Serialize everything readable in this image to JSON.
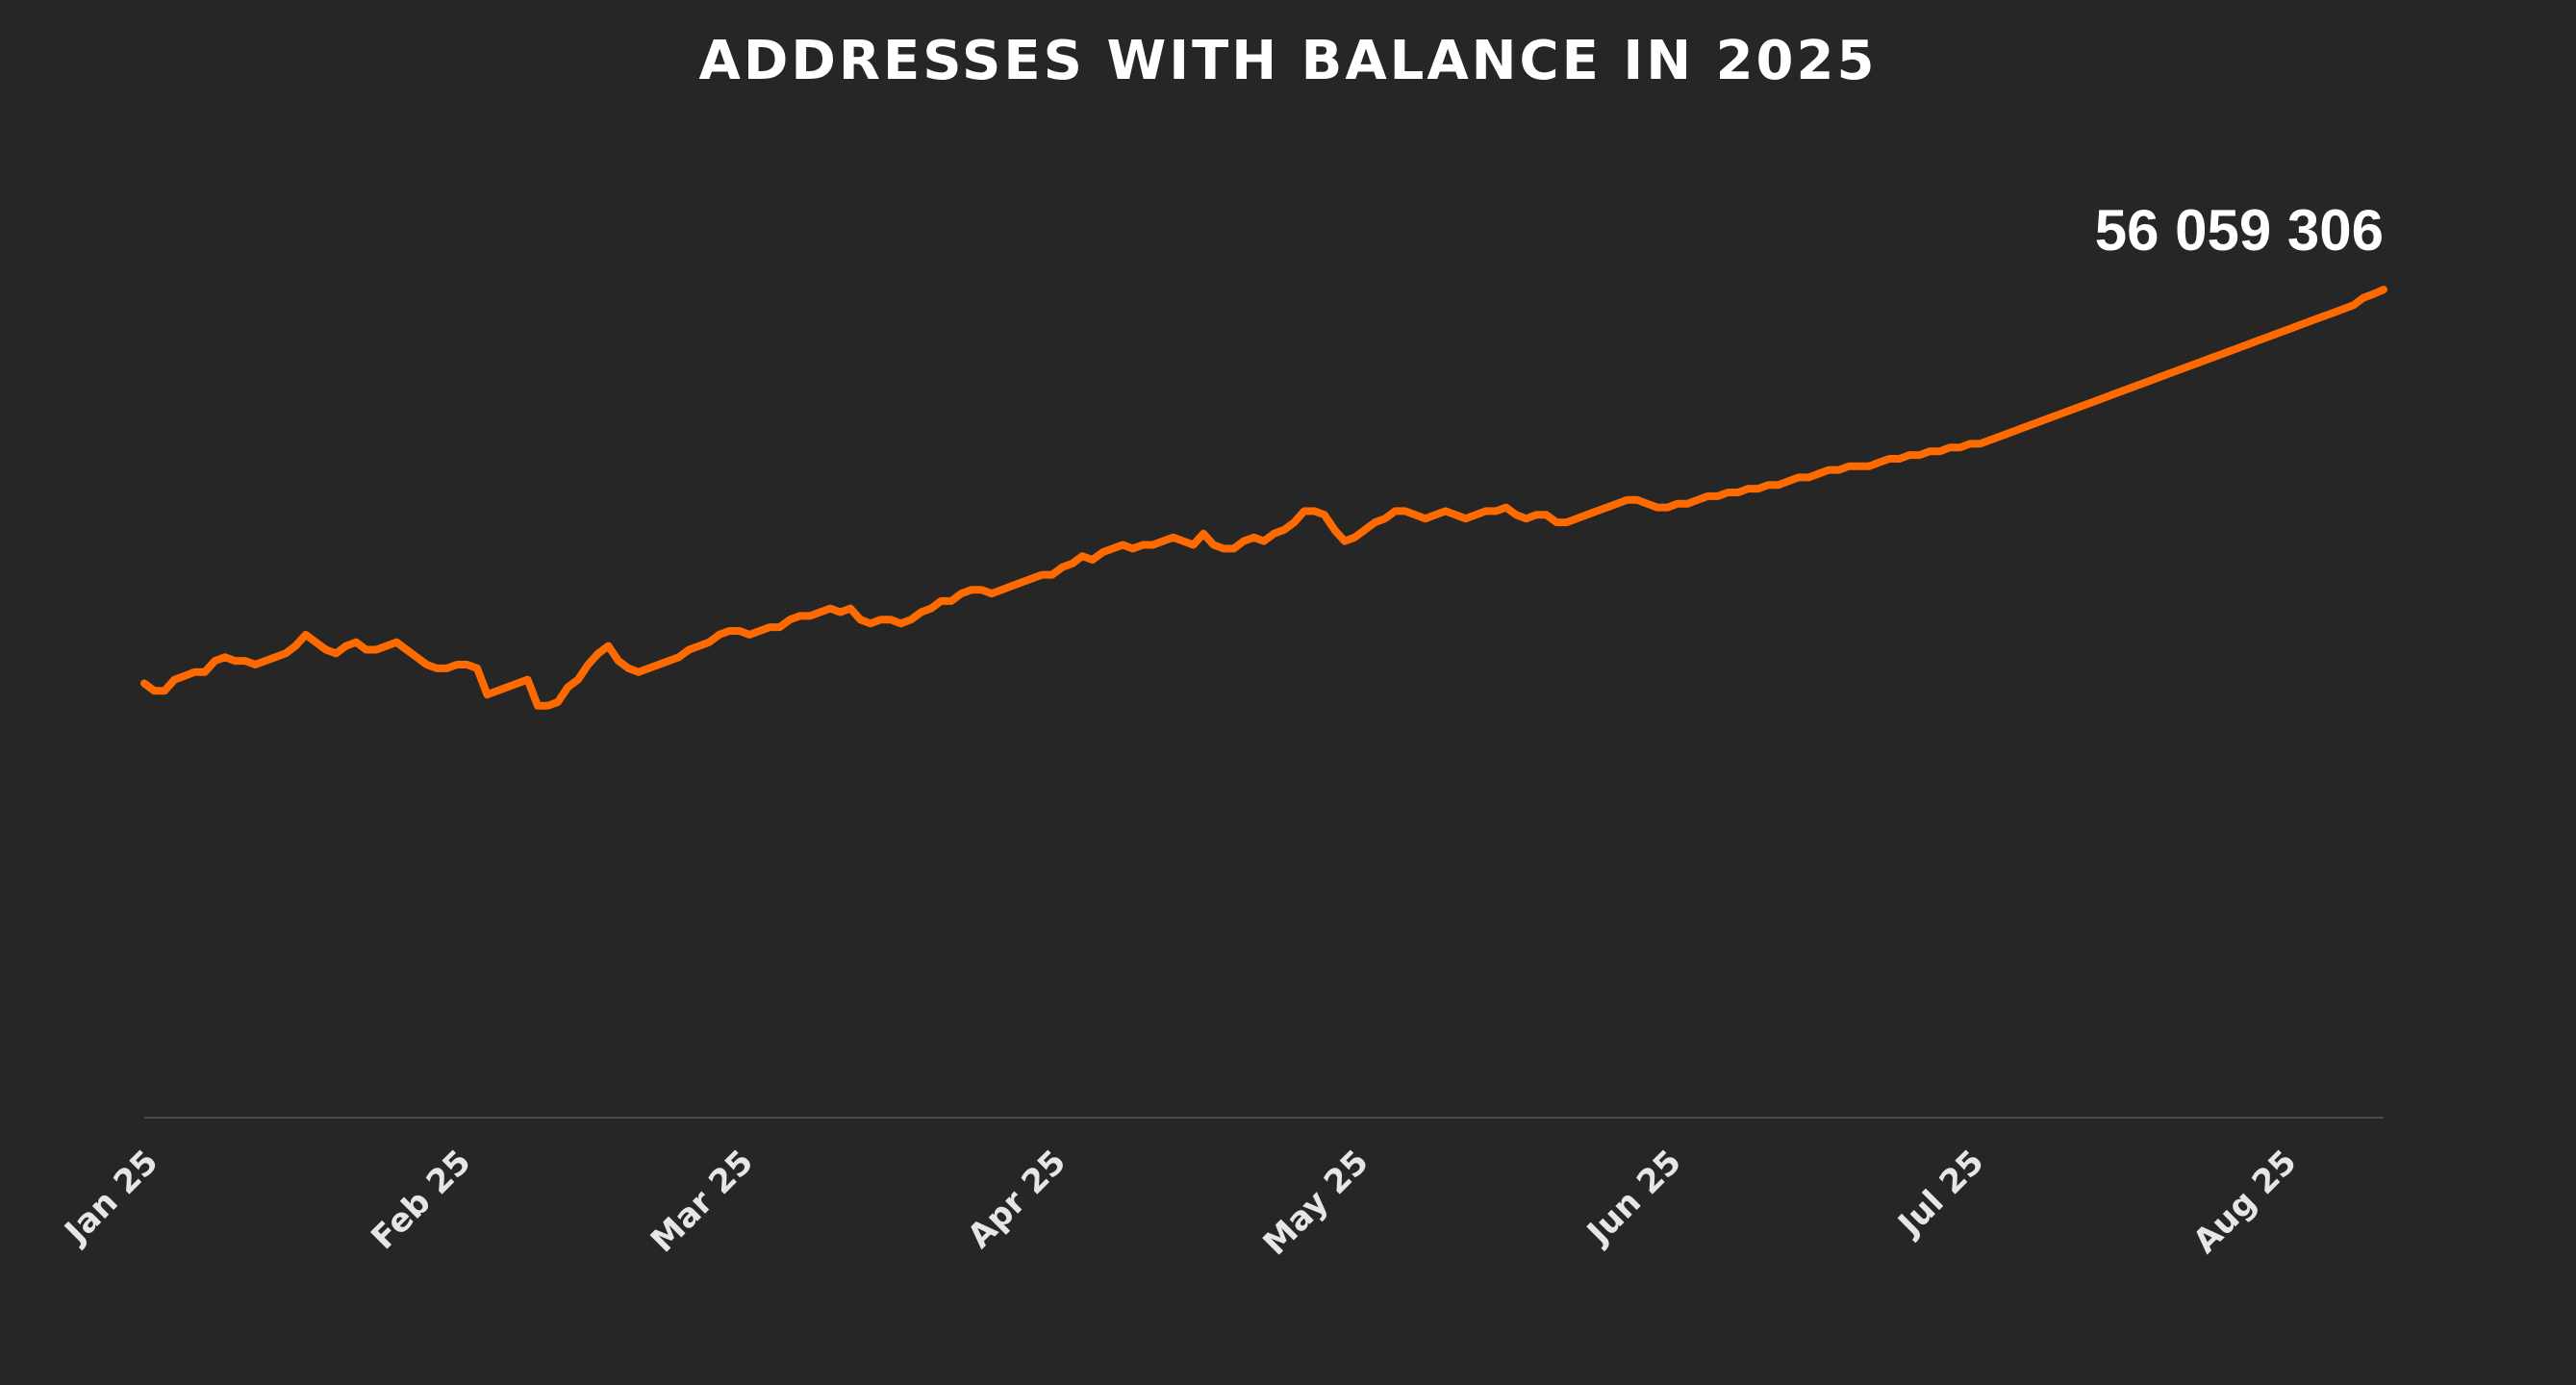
{
  "chart_data": {
    "type": "line",
    "title": "ADDRESSES WITH BALANCE IN 2025",
    "xlabel": "",
    "ylabel": "",
    "grid": false,
    "x_tick_labels": [
      "Jan 25",
      "Feb 25",
      "Mar 25",
      "Apr 25",
      "May 25",
      "Jun 25",
      "Jul 25",
      "Aug 25"
    ],
    "x_tick_days": [
      0,
      31,
      59,
      90,
      120,
      151,
      181,
      212
    ],
    "x_range_days": [
      0,
      222
    ],
    "ylim": [
      45000000,
      58000000
    ],
    "last_value_label": "56 059 306",
    "series": [
      {
        "name": "Addresses with balance",
        "color": "#ff6a00",
        "points": [
          [
            0,
            50800000
          ],
          [
            1,
            50700000
          ],
          [
            2,
            50700000
          ],
          [
            3,
            50850000
          ],
          [
            4,
            50900000
          ],
          [
            5,
            50950000
          ],
          [
            6,
            50950000
          ],
          [
            7,
            51100000
          ],
          [
            8,
            51150000
          ],
          [
            9,
            51100000
          ],
          [
            10,
            51100000
          ],
          [
            11,
            51050000
          ],
          [
            12,
            51100000
          ],
          [
            13,
            51150000
          ],
          [
            14,
            51200000
          ],
          [
            15,
            51300000
          ],
          [
            16,
            51450000
          ],
          [
            17,
            51350000
          ],
          [
            18,
            51250000
          ],
          [
            19,
            51200000
          ],
          [
            20,
            51300000
          ],
          [
            21,
            51350000
          ],
          [
            22,
            51250000
          ],
          [
            23,
            51250000
          ],
          [
            24,
            51300000
          ],
          [
            25,
            51350000
          ],
          [
            26,
            51250000
          ],
          [
            27,
            51150000
          ],
          [
            28,
            51050000
          ],
          [
            29,
            51000000
          ],
          [
            30,
            51000000
          ],
          [
            31,
            51050000
          ],
          [
            32,
            51050000
          ],
          [
            33,
            51000000
          ],
          [
            34,
            50650000
          ],
          [
            35,
            50700000
          ],
          [
            36,
            50750000
          ],
          [
            37,
            50800000
          ],
          [
            38,
            50850000
          ],
          [
            39,
            50500000
          ],
          [
            40,
            50500000
          ],
          [
            41,
            50550000
          ],
          [
            42,
            50750000
          ],
          [
            43,
            50850000
          ],
          [
            44,
            51050000
          ],
          [
            45,
            51200000
          ],
          [
            46,
            51300000
          ],
          [
            47,
            51100000
          ],
          [
            48,
            51000000
          ],
          [
            49,
            50950000
          ],
          [
            50,
            51000000
          ],
          [
            51,
            51050000
          ],
          [
            52,
            51100000
          ],
          [
            53,
            51150000
          ],
          [
            54,
            51250000
          ],
          [
            55,
            51300000
          ],
          [
            56,
            51350000
          ],
          [
            57,
            51450000
          ],
          [
            58,
            51500000
          ],
          [
            59,
            51500000
          ],
          [
            60,
            51450000
          ],
          [
            61,
            51500000
          ],
          [
            62,
            51550000
          ],
          [
            63,
            51550000
          ],
          [
            64,
            51650000
          ],
          [
            65,
            51700000
          ],
          [
            66,
            51700000
          ],
          [
            67,
            51750000
          ],
          [
            68,
            51800000
          ],
          [
            69,
            51750000
          ],
          [
            70,
            51800000
          ],
          [
            71,
            51650000
          ],
          [
            72,
            51600000
          ],
          [
            73,
            51650000
          ],
          [
            74,
            51650000
          ],
          [
            75,
            51600000
          ],
          [
            76,
            51650000
          ],
          [
            77,
            51750000
          ],
          [
            78,
            51800000
          ],
          [
            79,
            51900000
          ],
          [
            80,
            51900000
          ],
          [
            81,
            52000000
          ],
          [
            82,
            52050000
          ],
          [
            83,
            52050000
          ],
          [
            84,
            52000000
          ],
          [
            85,
            52050000
          ],
          [
            86,
            52100000
          ],
          [
            87,
            52150000
          ],
          [
            88,
            52200000
          ],
          [
            89,
            52250000
          ],
          [
            90,
            52250000
          ],
          [
            91,
            52350000
          ],
          [
            92,
            52400000
          ],
          [
            93,
            52500000
          ],
          [
            94,
            52450000
          ],
          [
            95,
            52550000
          ],
          [
            96,
            52600000
          ],
          [
            97,
            52650000
          ],
          [
            98,
            52600000
          ],
          [
            99,
            52650000
          ],
          [
            100,
            52650000
          ],
          [
            101,
            52700000
          ],
          [
            102,
            52750000
          ],
          [
            103,
            52700000
          ],
          [
            104,
            52650000
          ],
          [
            105,
            52800000
          ],
          [
            106,
            52650000
          ],
          [
            107,
            52600000
          ],
          [
            108,
            52600000
          ],
          [
            109,
            52700000
          ],
          [
            110,
            52750000
          ],
          [
            111,
            52700000
          ],
          [
            112,
            52800000
          ],
          [
            113,
            52850000
          ],
          [
            114,
            52950000
          ],
          [
            115,
            53100000
          ],
          [
            116,
            53100000
          ],
          [
            117,
            53050000
          ],
          [
            118,
            52850000
          ],
          [
            119,
            52700000
          ],
          [
            120,
            52750000
          ],
          [
            121,
            52850000
          ],
          [
            122,
            52950000
          ],
          [
            123,
            53000000
          ],
          [
            124,
            53100000
          ],
          [
            125,
            53100000
          ],
          [
            126,
            53050000
          ],
          [
            127,
            53000000
          ],
          [
            128,
            53050000
          ],
          [
            129,
            53100000
          ],
          [
            130,
            53050000
          ],
          [
            131,
            53000000
          ],
          [
            132,
            53050000
          ],
          [
            133,
            53100000
          ],
          [
            134,
            53100000
          ],
          [
            135,
            53150000
          ],
          [
            136,
            53050000
          ],
          [
            137,
            53000000
          ],
          [
            138,
            53050000
          ],
          [
            139,
            53050000
          ],
          [
            140,
            52950000
          ],
          [
            141,
            52950000
          ],
          [
            142,
            53000000
          ],
          [
            143,
            53050000
          ],
          [
            144,
            53100000
          ],
          [
            145,
            53150000
          ],
          [
            146,
            53200000
          ],
          [
            147,
            53250000
          ],
          [
            148,
            53250000
          ],
          [
            149,
            53200000
          ],
          [
            150,
            53150000
          ],
          [
            151,
            53150000
          ],
          [
            152,
            53200000
          ],
          [
            153,
            53200000
          ],
          [
            154,
            53250000
          ],
          [
            155,
            53300000
          ],
          [
            156,
            53300000
          ],
          [
            157,
            53350000
          ],
          [
            158,
            53350000
          ],
          [
            159,
            53400000
          ],
          [
            160,
            53400000
          ],
          [
            161,
            53450000
          ],
          [
            162,
            53450000
          ],
          [
            163,
            53500000
          ],
          [
            164,
            53550000
          ],
          [
            165,
            53550000
          ],
          [
            166,
            53600000
          ],
          [
            167,
            53650000
          ],
          [
            168,
            53650000
          ],
          [
            169,
            53700000
          ],
          [
            170,
            53700000
          ],
          [
            171,
            53700000
          ],
          [
            172,
            53750000
          ],
          [
            173,
            53800000
          ],
          [
            174,
            53800000
          ],
          [
            175,
            53850000
          ],
          [
            176,
            53850000
          ],
          [
            177,
            53900000
          ],
          [
            178,
            53900000
          ],
          [
            179,
            53950000
          ],
          [
            180,
            53950000
          ],
          [
            181,
            54000000
          ],
          [
            182,
            54000000
          ],
          [
            183,
            54050000
          ],
          [
            184,
            54100000
          ],
          [
            185,
            54150000
          ],
          [
            186,
            54200000
          ],
          [
            187,
            54250000
          ],
          [
            188,
            54300000
          ],
          [
            189,
            54350000
          ],
          [
            190,
            54400000
          ],
          [
            191,
            54450000
          ],
          [
            192,
            54500000
          ],
          [
            193,
            54550000
          ],
          [
            194,
            54600000
          ],
          [
            195,
            54650000
          ],
          [
            196,
            54700000
          ],
          [
            197,
            54750000
          ],
          [
            198,
            54800000
          ],
          [
            199,
            54850000
          ],
          [
            200,
            54900000
          ],
          [
            201,
            54950000
          ],
          [
            202,
            55000000
          ],
          [
            203,
            55050000
          ],
          [
            204,
            55100000
          ],
          [
            205,
            55150000
          ],
          [
            206,
            55200000
          ],
          [
            207,
            55250000
          ],
          [
            208,
            55300000
          ],
          [
            209,
            55350000
          ],
          [
            210,
            55400000
          ],
          [
            211,
            55450000
          ],
          [
            212,
            55500000
          ],
          [
            213,
            55550000
          ],
          [
            214,
            55600000
          ],
          [
            215,
            55650000
          ],
          [
            216,
            55700000
          ],
          [
            217,
            55750000
          ],
          [
            218,
            55800000
          ],
          [
            219,
            55850000
          ],
          [
            220,
            55950000
          ],
          [
            221,
            56000000
          ],
          [
            222,
            56059306
          ]
        ]
      }
    ]
  }
}
